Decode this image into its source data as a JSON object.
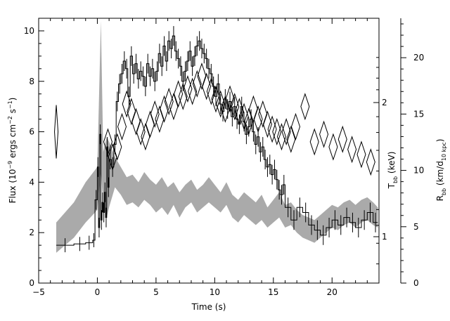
{
  "chart_data": {
    "type": "line",
    "xlabel": "Time (s)",
    "ylabel_left": {
      "main": "Flux (10",
      "exp1": "−9",
      "mid": " ergs cm",
      "exp2": "−2",
      "mid2": " s",
      "exp3": "−1",
      "end": ")"
    },
    "ylabel_right_inner": {
      "main": "T",
      "sub": "bb",
      "end": " (keV)"
    },
    "ylabel_right_outer": {
      "main": "R",
      "sub": "bb",
      "mid": " (km/d",
      "sub2": "10 kpc",
      "end": ")"
    },
    "xlim": [
      -5,
      24
    ],
    "ylim": [
      0,
      10.5
    ],
    "x_ticks": [
      -5,
      0,
      5,
      10,
      15,
      20
    ],
    "y_ticks": [
      0,
      2,
      4,
      6,
      8,
      10
    ],
    "t_ticks": [
      1,
      2
    ],
    "r_ticks": [
      0,
      5,
      10,
      15,
      20
    ],
    "r_lim": [
      0,
      23.5
    ],
    "series": [
      {
        "kind": "flux-histogram",
        "color": "#000000",
        "x": [
          -3.5,
          -2,
          -1,
          -0.4,
          -0.2,
          0,
          0.1,
          0.2,
          0.3,
          0.4,
          0.5,
          0.6,
          0.7,
          0.8,
          0.9,
          1.0,
          1.2,
          1.4,
          1.6,
          1.8,
          2.0,
          2.2,
          2.4,
          2.6,
          2.8,
          3.0,
          3.2,
          3.4,
          3.6,
          3.8,
          4.0,
          4.2,
          4.4,
          4.6,
          4.8,
          5.0,
          5.2,
          5.4,
          5.6,
          5.8,
          6.0,
          6.2,
          6.4,
          6.6,
          6.8,
          7.0,
          7.2,
          7.4,
          7.6,
          7.8,
          8.0,
          8.2,
          8.4,
          8.6,
          8.8,
          9.0,
          9.2,
          9.4,
          9.6,
          9.8,
          10.0,
          10.2,
          10.4,
          10.6,
          10.8,
          11.0,
          11.2,
          11.4,
          11.6,
          11.8,
          12.0,
          12.2,
          12.4,
          12.6,
          12.8,
          13.0,
          13.2,
          13.4,
          13.6,
          13.8,
          14.0,
          14.2,
          14.4,
          14.6,
          14.8,
          15.0,
          15.2,
          15.4,
          15.6,
          15.8,
          16.0,
          16.5,
          17.0,
          17.5,
          18.0,
          18.5,
          19.0,
          19.5,
          20.0,
          20.5,
          21.0,
          21.5,
          22.0,
          22.5,
          23.0,
          23.5,
          23.9
        ],
        "y": [
          1.5,
          1.55,
          1.6,
          1.7,
          3.3,
          4.6,
          2.2,
          5.9,
          2.5,
          3.2,
          2.8,
          3.6,
          2.6,
          5.4,
          3.8,
          4.9,
          4.6,
          5.5,
          7.2,
          7.9,
          8.3,
          8.8,
          8.5,
          7.4,
          9.0,
          8.3,
          8.7,
          8.1,
          8.4,
          8.2,
          7.8,
          8.7,
          8.2,
          8.5,
          8.0,
          8.4,
          9.1,
          8.6,
          9.4,
          8.8,
          9.6,
          9.3,
          9.8,
          9.2,
          8.9,
          8.6,
          8.0,
          8.4,
          8.8,
          9.2,
          8.6,
          9.0,
          9.4,
          9.6,
          9.3,
          9.1,
          8.9,
          8.5,
          8.3,
          7.8,
          7.4,
          7.9,
          7.1,
          6.8,
          7.3,
          6.9,
          7.2,
          6.6,
          7.0,
          6.5,
          6.3,
          7.0,
          6.4,
          5.9,
          6.2,
          6.5,
          6.0,
          5.5,
          5.8,
          5.2,
          5.4,
          4.9,
          4.6,
          4.7,
          4.3,
          4.5,
          4.1,
          3.7,
          3.5,
          3.9,
          3.0,
          2.5,
          3.0,
          2.8,
          2.3,
          2.1,
          1.9,
          2.2,
          2.5,
          2.3,
          2.6,
          2.4,
          2.2,
          2.5,
          2.8,
          2.4,
          2.0
        ]
      },
      {
        "kind": "temperature-diamonds",
        "color": "#000000",
        "x": [
          -3.5,
          0.9,
          1.3,
          1.7,
          2.1,
          2.5,
          2.9,
          3.3,
          3.7,
          4.1,
          4.5,
          4.9,
          5.3,
          5.7,
          6.1,
          6.5,
          6.9,
          7.3,
          7.7,
          8.1,
          8.5,
          8.9,
          9.3,
          9.7,
          10.1,
          10.5,
          10.9,
          11.3,
          11.7,
          12.1,
          12.5,
          12.9,
          13.3,
          13.7,
          14.1,
          14.5,
          14.9,
          15.3,
          15.7,
          16.1,
          16.5,
          16.9,
          17.7,
          18.5,
          19.3,
          20.1,
          20.9,
          21.7,
          22.5,
          23.3
        ],
        "y": [
          6.0,
          5.6,
          5.0,
          5.4,
          6.2,
          7.1,
          6.8,
          6.4,
          6.0,
          5.8,
          6.3,
          6.7,
          6.5,
          6.9,
          7.2,
          7.0,
          7.5,
          7.4,
          7.7,
          7.6,
          7.9,
          8.2,
          7.8,
          7.6,
          7.3,
          7.1,
          6.9,
          7.3,
          7.0,
          6.8,
          6.6,
          6.4,
          6.9,
          6.5,
          6.7,
          6.3,
          6.1,
          6.0,
          5.8,
          6.0,
          5.7,
          6.2,
          7.0,
          5.6,
          5.9,
          5.4,
          5.7,
          5.3,
          5.1,
          4.8
        ]
      },
      {
        "kind": "radius-band",
        "color": "#aaaaaa",
        "x": [
          -3.5,
          -2,
          -1,
          0,
          0.3,
          0.5,
          0.8,
          1.0,
          1.5,
          2.0,
          2.5,
          3.0,
          3.5,
          4.0,
          4.5,
          5.0,
          5.5,
          6.0,
          6.5,
          7.0,
          7.5,
          8.0,
          8.5,
          9.0,
          9.5,
          10.0,
          10.5,
          11.0,
          11.5,
          12.0,
          12.5,
          13.0,
          13.5,
          14.0,
          14.5,
          15.0,
          15.5,
          16.0,
          16.5,
          17.0,
          17.5,
          18.0,
          18.5,
          19.0,
          19.5,
          20.0,
          20.5,
          21.0,
          21.5,
          22.0,
          22.5,
          23.0,
          23.5,
          23.9
        ],
        "y_low": [
          1.2,
          1.8,
          2.4,
          2.9,
          4.5,
          3.0,
          2.6,
          3.0,
          3.8,
          3.5,
          3.1,
          3.2,
          3.0,
          3.3,
          3.1,
          2.8,
          3.0,
          2.7,
          3.1,
          2.6,
          3.0,
          3.2,
          2.8,
          3.0,
          3.2,
          3.0,
          2.8,
          3.1,
          2.6,
          2.4,
          2.7,
          2.5,
          2.3,
          2.5,
          2.2,
          2.4,
          2.6,
          2.2,
          2.3,
          2.0,
          1.8,
          1.7,
          1.6,
          1.8,
          2.0,
          2.2,
          2.1,
          2.3,
          2.4,
          2.2,
          2.4,
          2.5,
          2.3,
          2.2
        ],
        "y_high": [
          2.4,
          3.2,
          4.0,
          4.6,
          10.4,
          5.2,
          5.8,
          5.6,
          5.0,
          4.6,
          4.2,
          4.3,
          4.0,
          4.4,
          4.1,
          3.9,
          4.2,
          3.8,
          4.0,
          3.6,
          3.9,
          4.1,
          3.7,
          3.9,
          4.2,
          3.9,
          3.6,
          4.0,
          3.5,
          3.3,
          3.6,
          3.4,
          3.2,
          3.5,
          3.0,
          3.3,
          3.6,
          3.1,
          3.2,
          2.9,
          2.7,
          2.6,
          2.5,
          2.7,
          2.9,
          3.1,
          3.0,
          3.2,
          3.3,
          3.1,
          3.3,
          3.4,
          3.2,
          3.0
        ]
      }
    ]
  }
}
